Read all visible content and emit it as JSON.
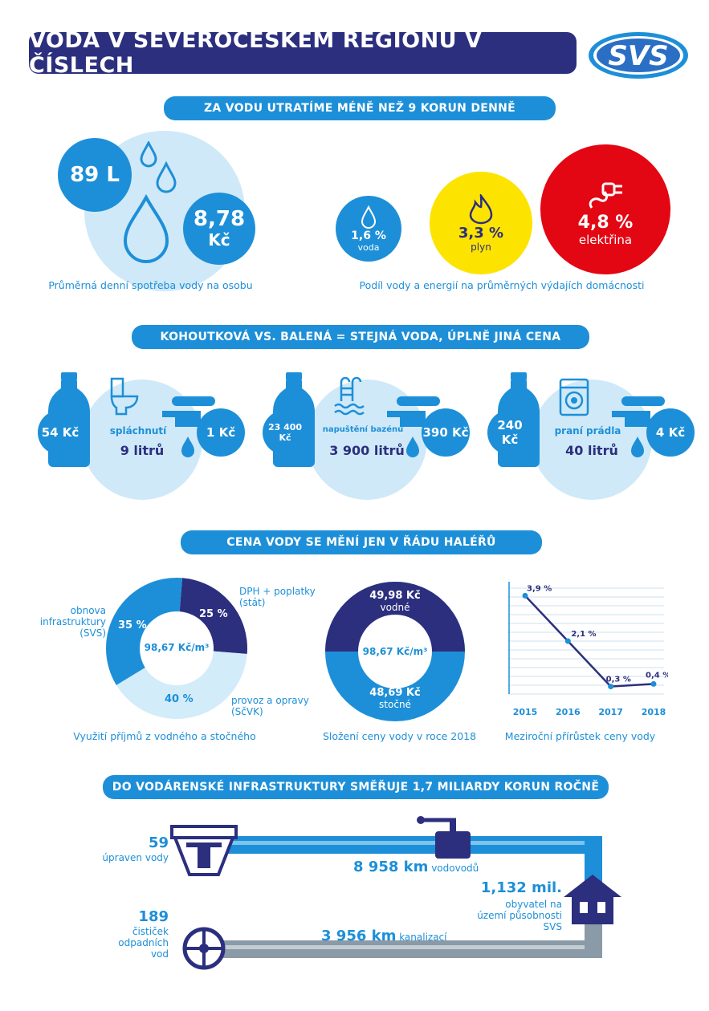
{
  "title": "VODA V SEVEROČESKÉM REGIONU V ČÍSLECH",
  "logo_text": "SVS",
  "section1": {
    "banner": "ZA VODU UTRATÍME MÉNĚ NEŽ 9 KORUN DENNĚ",
    "liters": "89 L",
    "price_value": "8,78",
    "price_unit": "Kč",
    "caption_left": "Průměrná denní spotřeba vody na osobu",
    "water_pct": "1,6 %",
    "water_label": "voda",
    "gas_pct": "3,3 %",
    "gas_label": "plyn",
    "elec_pct": "4,8 %",
    "elec_label": "elektřina",
    "caption_right": "Podíl vody a energií na průměrných výdajích domácnosti"
  },
  "section2": {
    "banner": "KOHOUTKOVÁ VS. BALENÁ = STEJNÁ VODA, ÚPLNĚ JINÁ CENA",
    "items": [
      {
        "bottle_price": "54 Kč",
        "label": "spláchnutí",
        "amount": "9 litrů",
        "tap_price": "1 Kč",
        "icon": "toilet-icon"
      },
      {
        "bottle_price": "23 400 Kč",
        "label": "napuštění bazénu",
        "amount": "3 900 litrů",
        "tap_price": "390 Kč",
        "icon": "pool-icon"
      },
      {
        "bottle_price": "240 Kč",
        "label": "praní prádla",
        "amount": "40 litrů",
        "tap_price": "4 Kč",
        "icon": "washing-machine-icon"
      }
    ]
  },
  "section3": {
    "banner": "CENA VODY SE MĚNÍ JEN V ŘÁDU HALÉŘŮ",
    "donut1": {
      "center": "98,67 Kč/m³",
      "slices": [
        {
          "label": "DPH + poplatky (stát)",
          "pct": "25 %",
          "value": 25,
          "color": "#2b2f7e"
        },
        {
          "label": "provoz a opravy (SčVK)",
          "pct": "40 %",
          "value": 40,
          "color": "#d3ecfa"
        },
        {
          "label": "obnova infrastruktury (SVS)",
          "pct": "35 %",
          "value": 35,
          "color": "#1d8fd8"
        }
      ],
      "caption": "Využití příjmů z vodného a stočného"
    },
    "donut2": {
      "center": "98,67 Kč/m³",
      "top_value": "49,98 Kč",
      "top_label": "vodné",
      "bottom_value": "48,69 Kč",
      "bottom_label": "stočné",
      "caption": "Složení ceny vody v roce 2018"
    },
    "chart_data": {
      "type": "line",
      "x": [
        "2015",
        "2016",
        "2017",
        "2018"
      ],
      "values": [
        3.9,
        2.1,
        0.3,
        0.4
      ],
      "labels": [
        "3,9 %",
        "2,1 %",
        "0,3 %",
        "0,4 %"
      ],
      "ylim": [
        0,
        4.2
      ],
      "caption": "Meziroční přírůstek ceny vody"
    }
  },
  "section4": {
    "banner": "DO VODÁRENSKÉ INFRASTRUKTURY SMĚŘUJE 1,7 MILIARDY KORUN ROČNĚ",
    "plants_count": "59",
    "plants_label": "úpraven vody",
    "water_km": "8 958 km",
    "water_km_label": "vodovodů",
    "population": "1,132 mil.",
    "population_label": "obyvatel na území působnosti SVS",
    "sewer_km": "3 956 km",
    "sewer_km_label": "kanalizací",
    "wwtp_count": "189",
    "wwtp_label": "čističek odpadních vod"
  }
}
